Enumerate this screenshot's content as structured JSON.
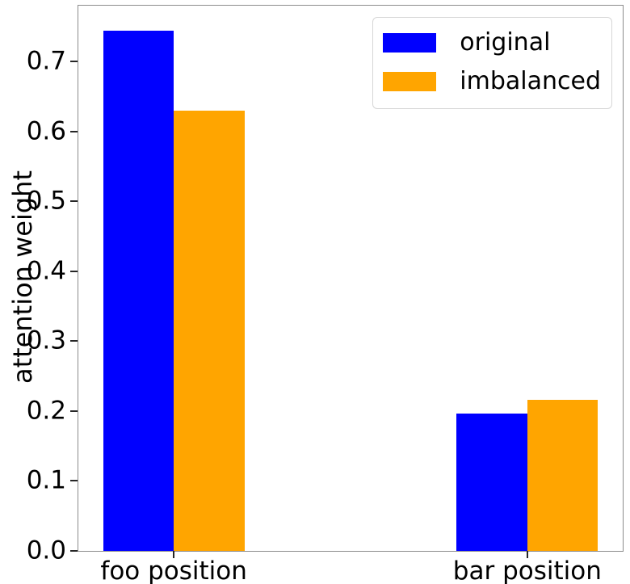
{
  "chart_data": {
    "type": "bar",
    "title": "",
    "xlabel": "",
    "ylabel": "attention weight",
    "categories": [
      "foo position",
      "bar position"
    ],
    "x_centers": [
      0,
      1
    ],
    "xlim": [
      -0.27,
      1.27
    ],
    "bar_width": 0.2,
    "series": [
      {
        "name": "original",
        "color": "#0000ff",
        "values": [
          0.744,
          0.196
        ]
      },
      {
        "name": "imbalanced",
        "color": "#ffa500",
        "values": [
          0.63,
          0.216
        ]
      }
    ],
    "ylim": [
      0,
      0.78
    ],
    "yticks": [
      0.0,
      0.1,
      0.2,
      0.3,
      0.4,
      0.5,
      0.6,
      0.7
    ],
    "ytick_labels": [
      "0.0",
      "0.1",
      "0.2",
      "0.3",
      "0.4",
      "0.5",
      "0.6",
      "0.7"
    ],
    "grid": false,
    "legend": {
      "position": "upper right"
    },
    "colors": {
      "spine": "#8c8c8c",
      "tick": "#262626",
      "background": "#ffffff"
    }
  }
}
